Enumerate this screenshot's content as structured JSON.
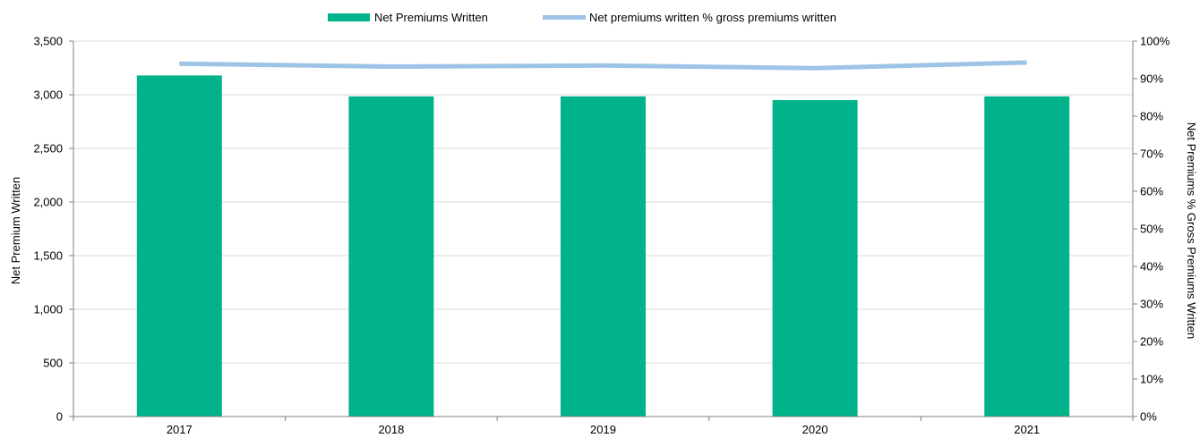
{
  "chart_data": {
    "type": "bar",
    "categories": [
      "2017",
      "2018",
      "2019",
      "2020",
      "2021"
    ],
    "series": [
      {
        "name": "Net Premiums Written",
        "type": "bar",
        "axis": "left",
        "color": "#00B38A",
        "values": [
          3180,
          2985,
          2985,
          2950,
          2985
        ]
      },
      {
        "name": "Net premiums written % gross premiums written",
        "type": "line",
        "axis": "right",
        "color": "#9DC3E6",
        "values": [
          0.94,
          0.932,
          0.935,
          0.928,
          0.943
        ]
      }
    ],
    "ylabel": "Net Premium Written",
    "y2label": "Net Premiums % Gross Premiums Written",
    "ylim": [
      0,
      3500
    ],
    "y2lim": [
      0,
      1
    ],
    "yticks": [
      "0",
      "500",
      "1,000",
      "1,500",
      "2,000",
      "2,500",
      "3,000",
      "3,500"
    ],
    "y2ticks": [
      "0%",
      "10%",
      "20%",
      "30%",
      "40%",
      "50%",
      "60%",
      "70%",
      "80%",
      "90%",
      "100%"
    ],
    "grid": true,
    "legend_position": "top-center"
  }
}
